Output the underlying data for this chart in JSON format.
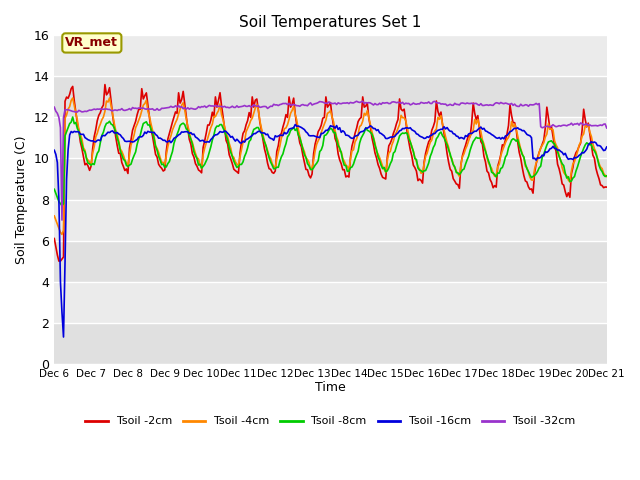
{
  "title": "Soil Temperatures Set 1",
  "xlabel": "Time",
  "ylabel": "Soil Temperature (C)",
  "ylim": [
    0,
    16
  ],
  "bg_color": "#e8e8e8",
  "grid_color": "#ffffff",
  "annotation_text": "VR_met",
  "annotation_bg": "#ffffcc",
  "annotation_border": "#999900",
  "tick_labels": [
    "Dec 6",
    "Dec 7",
    "Dec 8",
    "Dec 9",
    "Dec 10",
    "Dec 11",
    "Dec 12",
    "Dec 13",
    "Dec 14",
    "Dec 15",
    "Dec 16",
    "Dec 17",
    "Dec 18",
    "Dec 19",
    "Dec 20",
    "Dec 21"
  ],
  "series": {
    "Tsoil -2cm": {
      "color": "#dd0000",
      "lw": 1.2
    },
    "Tsoil -4cm": {
      "color": "#ff8800",
      "lw": 1.2
    },
    "Tsoil -8cm": {
      "color": "#00cc00",
      "lw": 1.2
    },
    "Tsoil -16cm": {
      "color": "#0000dd",
      "lw": 1.2
    },
    "Tsoil -32cm": {
      "color": "#9933cc",
      "lw": 1.2
    }
  },
  "legend_order": [
    "Tsoil -2cm",
    "Tsoil -4cm",
    "Tsoil -8cm",
    "Tsoil -16cm",
    "Tsoil -32cm"
  ]
}
